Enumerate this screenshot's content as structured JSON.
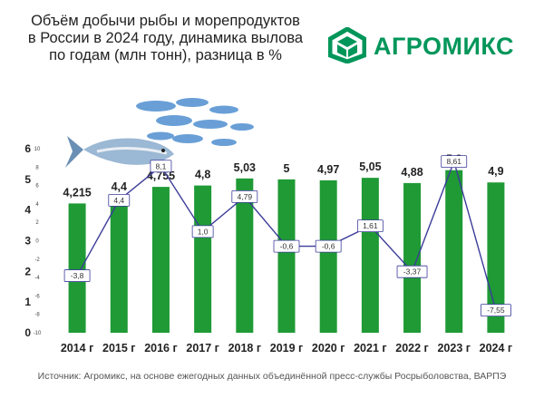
{
  "header": {
    "title_lines": [
      "Объём добычи рыбы и морепродуктов",
      "в России в 2024 году, динамика вылова",
      "по годам (млн тонн), разница в %"
    ]
  },
  "brand": {
    "name": "АГРОМИКС",
    "color": "#00965a"
  },
  "footer": {
    "source": "Источник: Агромикс, на основе ежегодных данных объединённой пресс-службы Росрыболовства, ВАРПЭ"
  },
  "colors": {
    "bar": "#1f9a35",
    "line": "#3c3c9a",
    "label_border": "#3c3c9a"
  },
  "chart_data": {
    "type": "bar",
    "categories": [
      "2014 г",
      "2015 г",
      "2016 г",
      "2017 г",
      "2018 г",
      "2019 г",
      "2020 г",
      "2021 г",
      "2022 г",
      "2023 г",
      "2024 г"
    ],
    "series": [
      {
        "type": "bar",
        "values": [
          4.215,
          4.4,
          4.755,
          4.8,
          5.03,
          5,
          4.97,
          5.05,
          4.88,
          5.3,
          4.9
        ],
        "labels": [
          "4,215",
          "4,4",
          "4,755",
          "4,8",
          "5,03",
          "5",
          "4,97",
          "5,05",
          "4,88",
          "5,3",
          "4,9"
        ]
      },
      {
        "type": "line",
        "values": [
          -3.8,
          4.4,
          8.1,
          1.0,
          4.79,
          -0.6,
          -0.6,
          1.61,
          -3.37,
          8.61,
          -7.55
        ],
        "labels": [
          "-3,8",
          "4,4",
          "8,1",
          "1,0",
          "4,79",
          "-0,6",
          "-0,6",
          "1,61",
          "-3,37",
          "8,61",
          "-7,55"
        ]
      }
    ],
    "y_axis": {
      "ylim": [
        0,
        6
      ],
      "ticks": [
        "0",
        "1",
        "2",
        "3",
        "4",
        "5",
        "6"
      ]
    },
    "y2_axis": {
      "ylim": [
        -10,
        10
      ],
      "ticks": [
        "-10",
        "-8",
        "-6",
        "-4",
        "-2",
        "0",
        "2",
        "4",
        "6",
        "8",
        "10"
      ]
    },
    "grid": false,
    "legend": "none"
  }
}
